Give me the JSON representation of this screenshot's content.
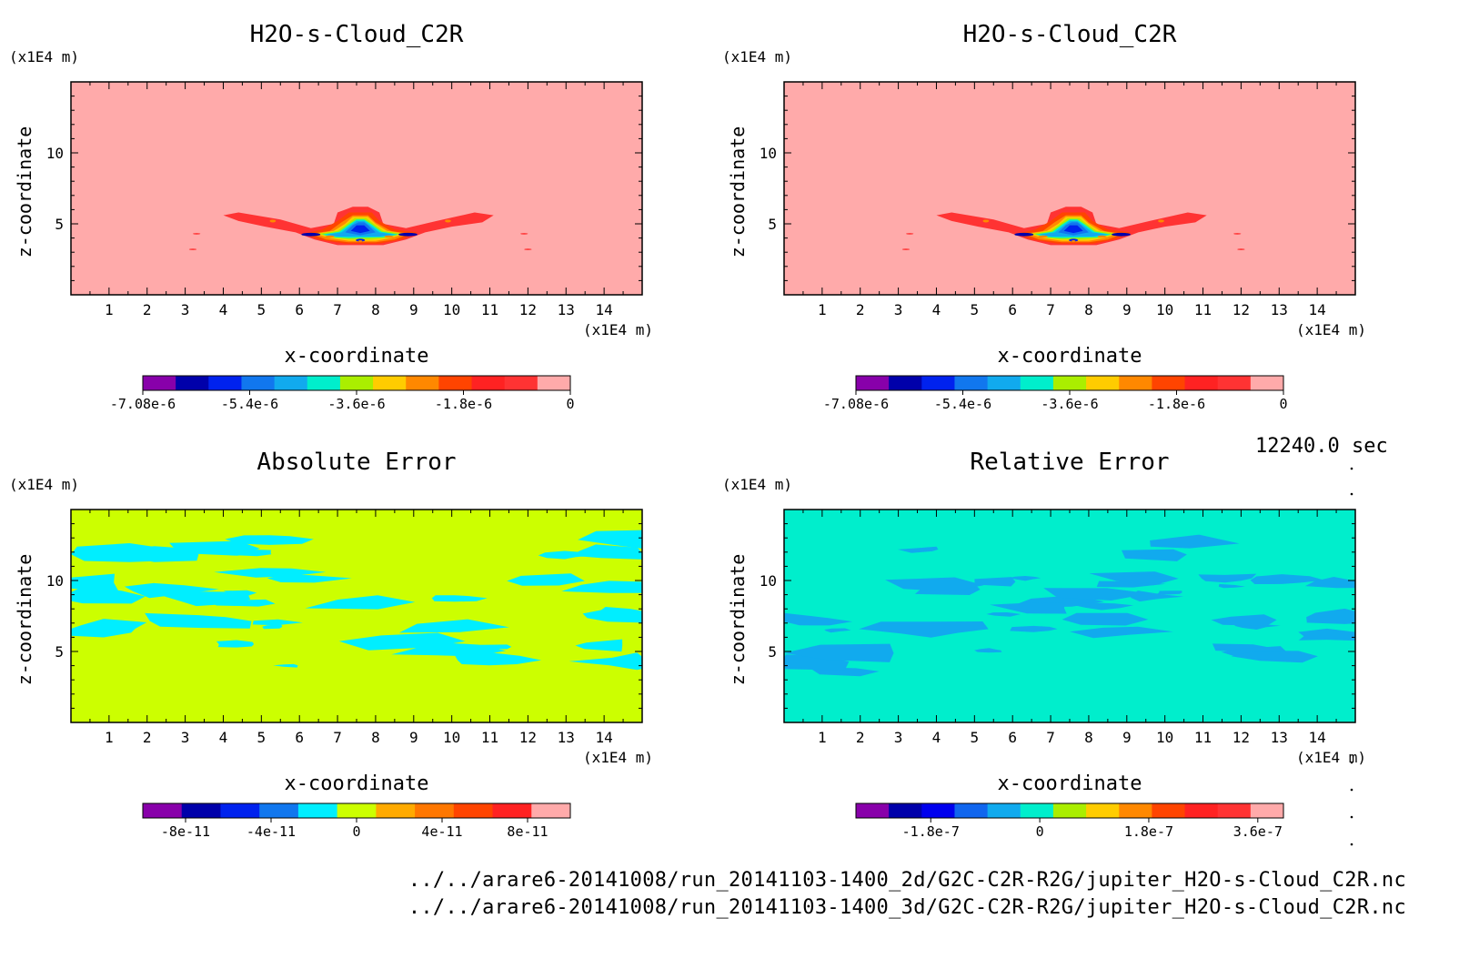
{
  "chart_data": [
    {
      "type": "heatmap",
      "title": "H2O-s-Cloud_C2R",
      "xlabel": "x-coordinate",
      "ylabel": "z-coordinate",
      "x_unit": "(x1E4 m)",
      "y_unit": "(x1E4 m)",
      "x_ticks": [
        "1",
        "2",
        "3",
        "4",
        "5",
        "6",
        "7",
        "8",
        "9",
        "10",
        "11",
        "12",
        "13",
        "14"
      ],
      "y_ticks": [
        "5",
        "10"
      ],
      "xlim": [
        0,
        15
      ],
      "ylim": [
        0,
        15
      ],
      "background": "#ffaaaa",
      "colorbar": {
        "colors": [
          "#8800aa",
          "#0000aa",
          "#0022ee",
          "#1177ee",
          "#11aaee",
          "#00eecc",
          "#aaee00",
          "#ffcc00",
          "#ff8800",
          "#ff4400",
          "#ff2222",
          "#ff3333",
          "#ffaaaa"
        ],
        "labels": [
          "-7.08e-6",
          "-5.4e-6",
          "-3.6e-6",
          "-1.8e-6",
          "0"
        ],
        "label_positions": [
          0,
          0.25,
          0.5,
          0.75,
          1.0
        ]
      },
      "features": "cloud"
    },
    {
      "type": "heatmap",
      "title": "H2O-s-Cloud_C2R",
      "xlabel": "x-coordinate",
      "ylabel": "z-coordinate",
      "x_unit": "(x1E4 m)",
      "y_unit": "(x1E4 m)",
      "x_ticks": [
        "1",
        "2",
        "3",
        "4",
        "5",
        "6",
        "7",
        "8",
        "9",
        "10",
        "11",
        "12",
        "13",
        "14"
      ],
      "y_ticks": [
        "5",
        "10"
      ],
      "xlim": [
        0,
        15
      ],
      "ylim": [
        0,
        15
      ],
      "background": "#ffaaaa",
      "colorbar": {
        "colors": [
          "#8800aa",
          "#0000aa",
          "#0022ee",
          "#1177ee",
          "#11aaee",
          "#00eecc",
          "#aaee00",
          "#ffcc00",
          "#ff8800",
          "#ff4400",
          "#ff2222",
          "#ff3333",
          "#ffaaaa"
        ],
        "labels": [
          "-7.08e-6",
          "-5.4e-6",
          "-3.6e-6",
          "-1.8e-6",
          "0"
        ],
        "label_positions": [
          0,
          0.25,
          0.5,
          0.75,
          1.0
        ]
      },
      "features": "cloud"
    },
    {
      "type": "heatmap",
      "title": "Absolute Error",
      "xlabel": "x-coordinate",
      "ylabel": "z-coordinate",
      "x_unit": "(x1E4 m)",
      "y_unit": "(x1E4 m)",
      "x_ticks": [
        "1",
        "2",
        "3",
        "4",
        "5",
        "6",
        "7",
        "8",
        "9",
        "10",
        "11",
        "12",
        "13",
        "14"
      ],
      "y_ticks": [
        "5",
        "10"
      ],
      "xlim": [
        0,
        15
      ],
      "ylim": [
        0,
        15
      ],
      "background": "#ccff00",
      "patch_color": "#00eeff",
      "colorbar": {
        "colors": [
          "#8800aa",
          "#0000aa",
          "#0022ee",
          "#1177ee",
          "#00eeff",
          "#ccff00",
          "#ffaa00",
          "#ff7700",
          "#ff4400",
          "#ff2222",
          "#ffaaaa"
        ],
        "labels": [
          "-8e-11",
          "-4e-11",
          "0",
          "4e-11",
          "8e-11"
        ],
        "label_positions": [
          0.1,
          0.3,
          0.5,
          0.7,
          0.9
        ]
      },
      "features": "patches"
    },
    {
      "type": "heatmap",
      "title": "Relative Error",
      "xlabel": "x-coordinate",
      "ylabel": "z-coordinate",
      "x_unit": "(x1E4 m)",
      "y_unit": "(x1E4 m)",
      "x_ticks": [
        "1",
        "2",
        "3",
        "4",
        "5",
        "6",
        "7",
        "8",
        "9",
        "10",
        "11",
        "12",
        "13",
        "14"
      ],
      "y_ticks": [
        "5",
        "10"
      ],
      "xlim": [
        0,
        15
      ],
      "ylim": [
        0,
        15
      ],
      "background": "#00eecc",
      "patch_color": "#11aaee",
      "colorbar": {
        "colors": [
          "#8800aa",
          "#0000aa",
          "#0000ee",
          "#1166ee",
          "#11aaee",
          "#00eecc",
          "#aaee00",
          "#ffcc00",
          "#ff8800",
          "#ff4400",
          "#ff2222",
          "#ff3333",
          "#ffaaaa"
        ],
        "labels": [
          "-1.8e-7",
          "0",
          "1.8e-7",
          "3.6e-7"
        ],
        "label_positions": [
          0.175,
          0.43,
          0.685,
          0.94
        ]
      },
      "features": "patches"
    }
  ],
  "time_label": "12240.0 sec",
  "footer": {
    "line1": "../../arare6-20141008/run_20141103-1400_2d/G2C-C2R-R2G/jupiter_H2O-s-Cloud_C2R.nc",
    "line2": "../../arare6-20141008/run_20141103-1400_3d/G2C-C2R-R2G/jupiter_H2O-s-Cloud_C2R.nc"
  }
}
